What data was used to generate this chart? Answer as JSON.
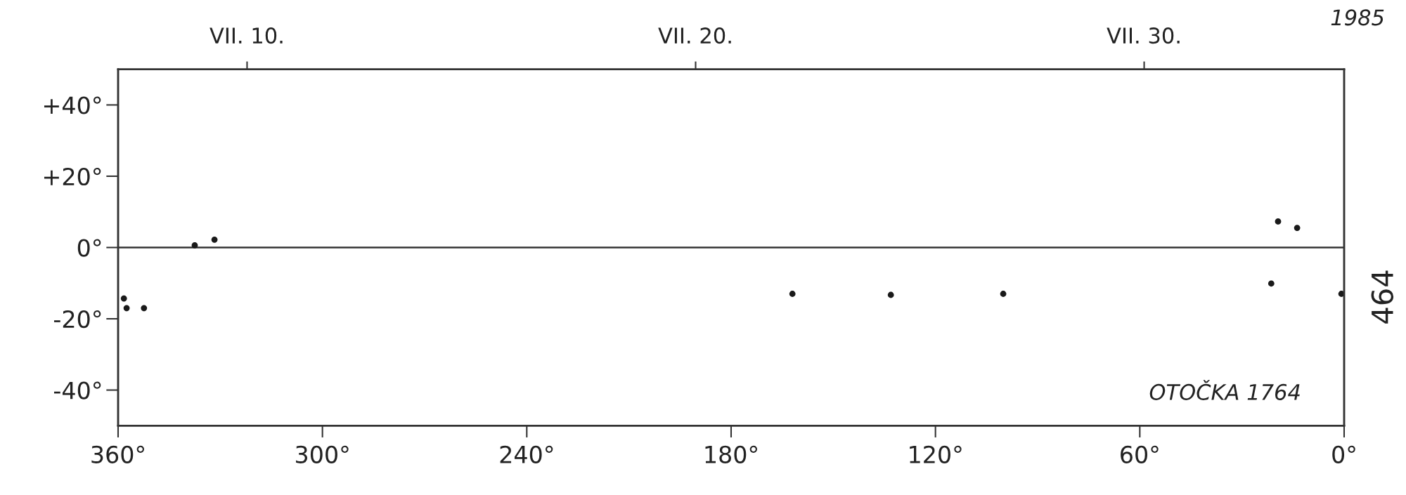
{
  "chart_data": {
    "type": "scatter",
    "x": [
      358.3,
      357.5,
      352.4,
      337.5,
      331.7,
      162.0,
      133.1,
      100.1,
      21.4,
      19.4,
      13.8,
      0.8
    ],
    "values": [
      -14.3,
      -17,
      -17,
      0.6,
      2.2,
      -13,
      -13.3,
      -13,
      -10.1,
      7.3,
      5.5,
      -13
    ],
    "color": "#1a1a1a",
    "marker": "circle",
    "xlim": [
      360,
      0
    ],
    "xticks": [
      {
        "value": 360,
        "label": "360°"
      },
      {
        "value": 300,
        "label": "300°"
      },
      {
        "value": 240,
        "label": "240°"
      },
      {
        "value": 180,
        "label": "180°"
      },
      {
        "value": 120,
        "label": "120°"
      },
      {
        "value": 60,
        "label": "60°"
      },
      {
        "value": 0,
        "label": "0°"
      }
    ],
    "x2lim": [
      "1985-07-07T03:00",
      "1985-08-03T11:00"
    ],
    "x2ticks": [
      {
        "value": "1985-07-10",
        "label": "VII. 10."
      },
      {
        "value": "1985-07-20",
        "label": "VII. 20."
      },
      {
        "value": "1985-07-30",
        "label": "VII. 30."
      }
    ],
    "ylim": [
      -50,
      50
    ],
    "yticks": [
      {
        "value": 40,
        "label": "+40°"
      },
      {
        "value": 20,
        "label": "+20°"
      },
      {
        "value": 0,
        "label": "0°"
      },
      {
        "value": -20,
        "label": "-20°"
      },
      {
        "value": -40,
        "label": "-40°"
      }
    ],
    "ref_lines": [
      {
        "axis": "y",
        "value": 0,
        "color": "#333333",
        "line_style": "solid"
      }
    ],
    "annotations": [
      "1985",
      "OTOČKA 1764",
      "464"
    ],
    "grid": false,
    "legend": false
  }
}
